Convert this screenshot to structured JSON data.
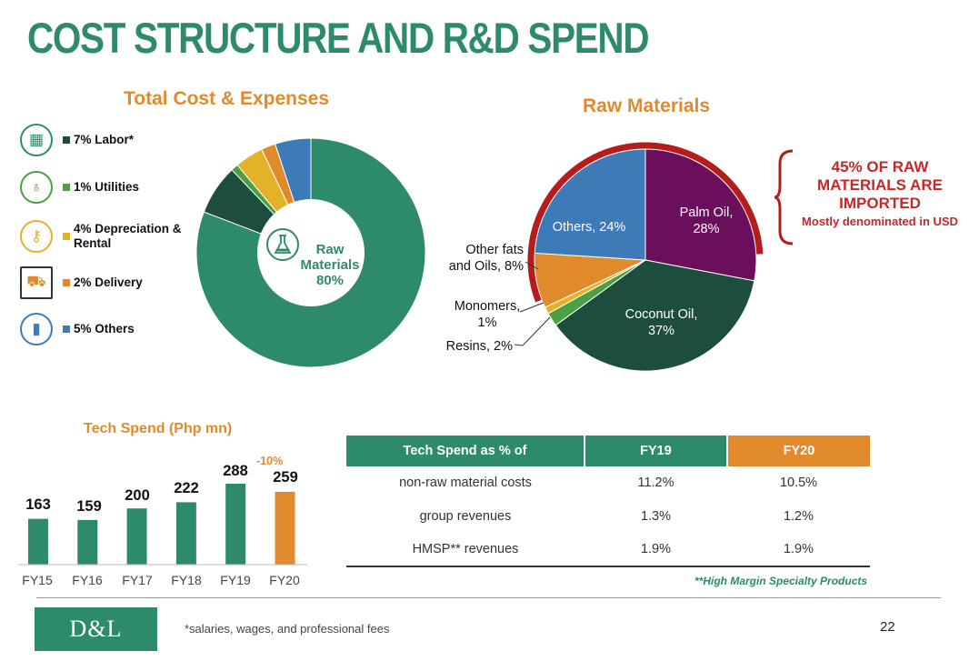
{
  "page_title": "COST STRUCTURE AND R&D SPEND",
  "colors": {
    "green": "#2e8b6a",
    "dark_green": "#1d4d3c",
    "light_green": "#4aa043",
    "yellow": "#e3b227",
    "orange": "#e08a2c",
    "blue": "#3d7ab8",
    "purple": "#6b0f5c",
    "red": "#c62828"
  },
  "legend": [
    {
      "icon": "building-icon",
      "text": "7% Labor*",
      "color": "#1d4d3c"
    },
    {
      "icon": "lightbulb-icon",
      "text": "1% Utilities",
      "color": "#4aa043"
    },
    {
      "icon": "keys-icon",
      "text": "4% Depreciation & Rental",
      "color": "#e3b227"
    },
    {
      "icon": "truck-icon",
      "text": "2% Delivery",
      "color": "#e08a2c"
    },
    {
      "icon": "bar-chart-icon",
      "text": "5% Others",
      "color": "#3d7ab8"
    }
  ],
  "center_label": {
    "line1": "Raw",
    "line2": "Materials",
    "line3": "80%"
  },
  "callout": {
    "line1": "45% OF RAW",
    "line2": "MATERIALS ARE",
    "line3": "IMPORTED",
    "sub": "Mostly denominated in USD"
  },
  "table": {
    "headers": [
      "Tech Spend as % of",
      "FY19",
      "FY20"
    ],
    "rows": [
      [
        "non-raw material costs",
        "11.2%",
        "10.5%"
      ],
      [
        "group revenues",
        "1.3%",
        "1.2%"
      ],
      [
        "HMSP** revenues",
        "1.9%",
        "1.9%"
      ]
    ],
    "footnote": "**High Margin Specialty Products"
  },
  "logo_text": "D&L",
  "footnote": "*salaries, wages, and professional fees",
  "page_number": "22",
  "chart_data": [
    {
      "type": "pie",
      "title": "Total Cost & Expenses",
      "donut": true,
      "categories": [
        "Raw Materials",
        "Labor*",
        "Utilities",
        "Depreciation & Rental",
        "Delivery",
        "Others"
      ],
      "values": [
        80,
        7,
        1,
        4,
        2,
        5
      ],
      "colors": [
        "#2e8b6a",
        "#1d4d3c",
        "#4aa043",
        "#e3b227",
        "#e08a2c",
        "#3d7ab8"
      ]
    },
    {
      "type": "pie",
      "title": "Raw Materials",
      "categories": [
        "Palm Oil",
        "Coconut Oil",
        "Resins",
        "Monomers",
        "Other fats and Oils",
        "Others"
      ],
      "values": [
        28,
        37,
        2,
        1,
        8,
        24
      ],
      "colors": [
        "#6b0f5c",
        "#1d4d3c",
        "#4aa043",
        "#e3b227",
        "#e08a2c",
        "#3d7ab8"
      ],
      "labels": {
        "palm": [
          "Palm Oil,",
          "28%"
        ],
        "coconut": [
          "Coconut Oil,",
          "37%"
        ],
        "others": [
          "Others, 24%"
        ],
        "fats": [
          "Other fats",
          "and Oils, 8%"
        ],
        "monomers": [
          "Monomers,",
          "1%"
        ],
        "resins": [
          "Resins, 2%"
        ]
      }
    },
    {
      "type": "bar",
      "title": "Tech Spend (Php mn)",
      "categories": [
        "FY15",
        "FY16",
        "FY17",
        "FY18",
        "FY19",
        "FY20"
      ],
      "values": [
        163,
        159,
        200,
        222,
        288,
        259
      ],
      "colors": [
        "#2e8b6a",
        "#2e8b6a",
        "#2e8b6a",
        "#2e8b6a",
        "#2e8b6a",
        "#e08a2c"
      ],
      "annotation": "-10%"
    }
  ]
}
